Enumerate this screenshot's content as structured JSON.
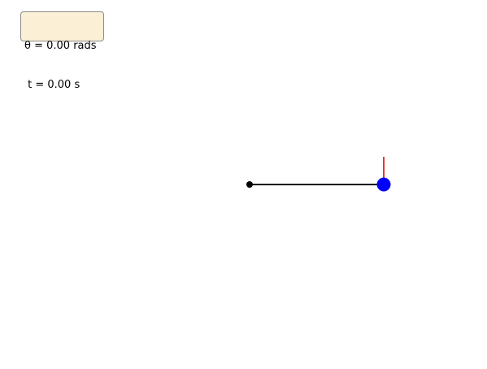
{
  "info_box": {
    "angle_text": "θ = 0.00 rads",
    "time_text": " t = 0.00 s"
  },
  "state": {
    "theta_rads": 0.0,
    "t_s": 0.0
  },
  "colors": {
    "rod": "#000000",
    "pivot": "#000000",
    "bob": "#0000ff",
    "velocity_vector": "#e8392b",
    "info_box_fill": "#fbefd5",
    "info_box_border": "#8a8a8a"
  }
}
